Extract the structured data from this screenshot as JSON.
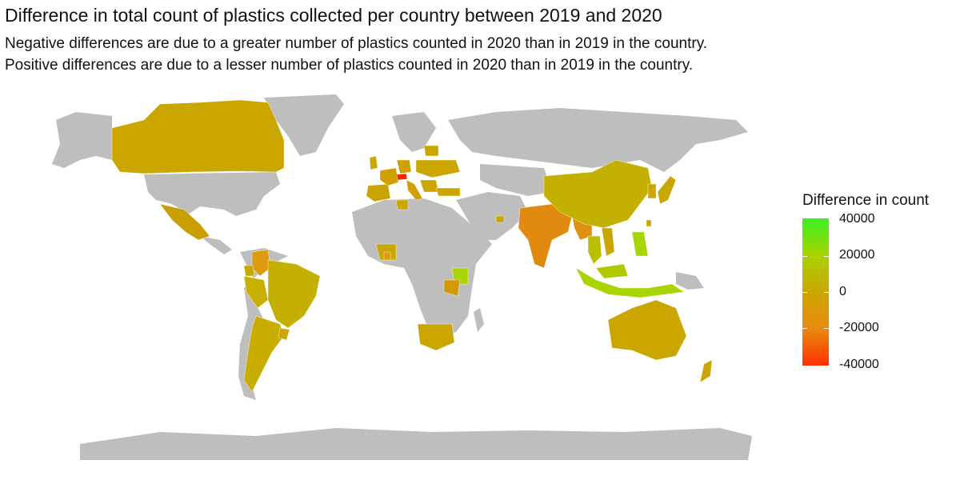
{
  "title": "Difference in total count of plastics collected per country between 2019 and 2020",
  "subtitle_line1": "Negative differences are due to a greater number of plastics counted in 2020 than in 2019 in the country.",
  "subtitle_line2": "Positive differences are due to a lesser number of plastics counted in 2020 than in 2019 in the country.",
  "legend": {
    "title": "Difference in count",
    "ticks": [
      "40000",
      "20000",
      "0",
      "-20000",
      "-40000"
    ],
    "range": [
      -40000,
      40000
    ],
    "low_color": "#ff3000",
    "mid_color": "#cca600",
    "high_color": "#3cf020"
  },
  "colors": {
    "land_no_data": "#bebebe",
    "background": "#ffffff"
  }
}
